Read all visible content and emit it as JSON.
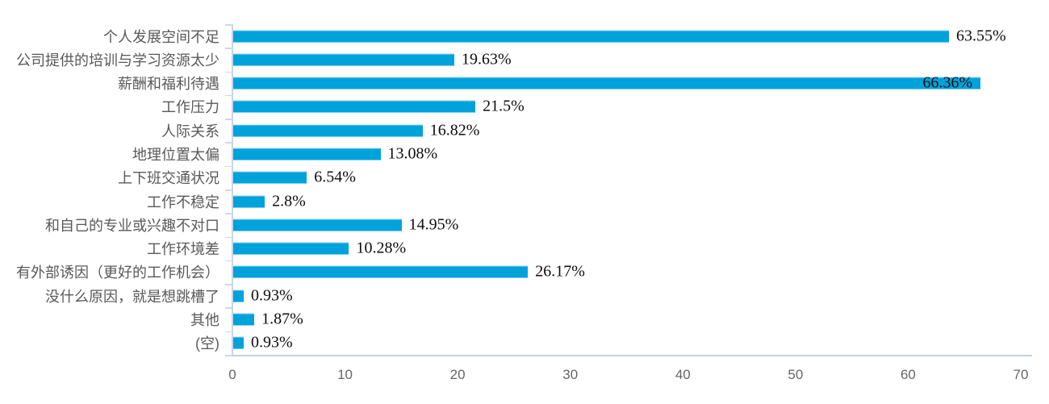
{
  "chart_data": {
    "type": "bar",
    "orientation": "horizontal",
    "title": "",
    "xlabel": "",
    "ylabel": "",
    "categories": [
      "个人发展空间不足",
      "公司提供的培训与学习资源太少",
      "薪酬和福利待遇",
      "工作压力",
      "人际关系",
      "地理位置太偏",
      "上下班交通状况",
      "工作不稳定",
      "和自己的专业或兴趣不对口",
      "工作环境差",
      "有外部诱因（更好的工作机会）",
      "没什么原因，就是想跳槽了",
      "其他",
      "(空)"
    ],
    "values": [
      63.55,
      19.63,
      66.36,
      21.5,
      16.82,
      13.08,
      6.54,
      2.8,
      14.95,
      10.28,
      26.17,
      0.93,
      1.87,
      0.93
    ],
    "value_labels": [
      "63.55%",
      "19.63%",
      "66.36%",
      "21.5%",
      "16.82%",
      "13.08%",
      "6.54%",
      "2.8%",
      "14.95%",
      "10.28%",
      "26.17%",
      "0.93%",
      "1.87%",
      "0.93%"
    ],
    "xlim": [
      0,
      70
    ],
    "x_ticks": [
      "0",
      "10",
      "20",
      "30",
      "40",
      "50",
      "60",
      "70"
    ],
    "grid": false,
    "legend": "none",
    "value_label_position": "end-of-bar"
  },
  "colors": {
    "bar": "#00a2dc",
    "axis_line": "#c9d4e6",
    "category_label": "#595959",
    "value_label": "#0d0d0d",
    "tick_label": "#666666",
    "background": "#ffffff"
  }
}
